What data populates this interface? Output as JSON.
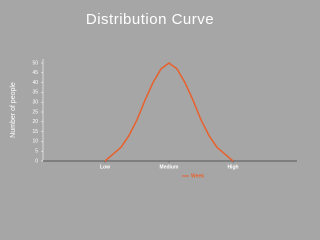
{
  "chart_data": {
    "type": "line",
    "title": "Distribution Curve",
    "y_label": "Number of people",
    "x": [
      1,
      1.125,
      1.25,
      1.375,
      1.5,
      1.625,
      1.75,
      1.875,
      2,
      2.125,
      2.25,
      2.375,
      2.5,
      2.625,
      2.75,
      2.875,
      3
    ],
    "series": [
      {
        "name": "Week",
        "color": "#e8602c",
        "values": [
          0,
          3.5,
          7,
          13,
          21,
          31,
          40,
          47,
          50,
          47,
          40,
          31,
          21,
          13,
          7,
          3.5,
          0
        ]
      }
    ],
    "xlim": [
      0,
      4
    ],
    "xticks": [
      {
        "value": 1,
        "label": "Low"
      },
      {
        "value": 2,
        "label": "Medium"
      },
      {
        "value": 3,
        "label": "High"
      }
    ],
    "ylim": [
      0,
      50
    ],
    "yticks": [
      0,
      5,
      10,
      15,
      20,
      25,
      30,
      35,
      40,
      45,
      50
    ],
    "grid": false,
    "legend": "bottom"
  }
}
